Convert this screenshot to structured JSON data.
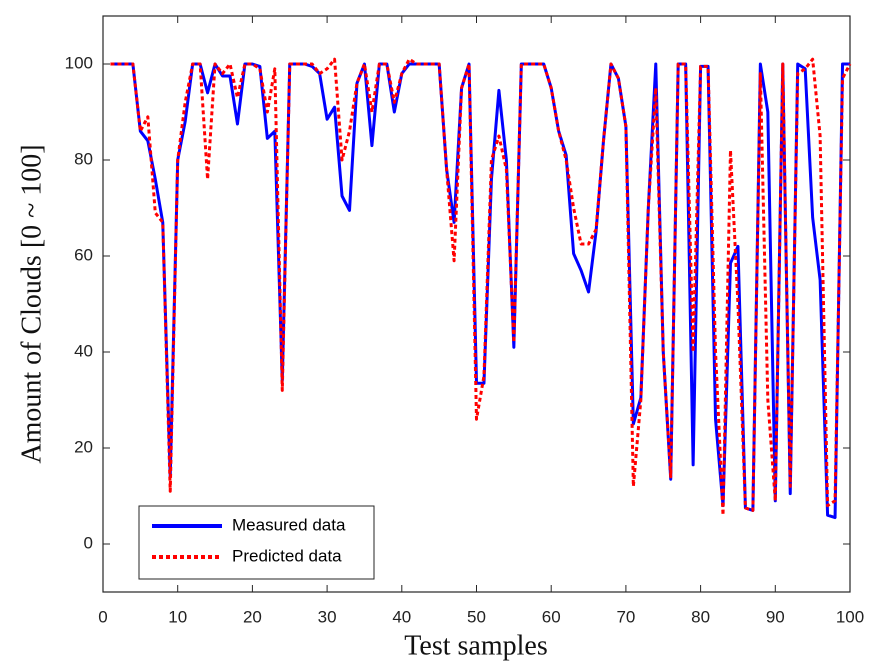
{
  "chart_data": {
    "type": "line",
    "xlabel": "Test samples",
    "ylabel": "Amount of Clouds [0 ~ 100]",
    "x": [
      1,
      2,
      3,
      4,
      5,
      6,
      7,
      8,
      9,
      10,
      11,
      12,
      13,
      14,
      15,
      16,
      17,
      18,
      19,
      20,
      21,
      22,
      23,
      24,
      25,
      26,
      27,
      28,
      29,
      30,
      31,
      32,
      33,
      34,
      35,
      36,
      37,
      38,
      39,
      40,
      41,
      42,
      43,
      44,
      45,
      46,
      47,
      48,
      49,
      50,
      51,
      52,
      53,
      54,
      55,
      56,
      57,
      58,
      59,
      60,
      61,
      62,
      63,
      64,
      65,
      66,
      67,
      68,
      69,
      70,
      71,
      72,
      73,
      74,
      75,
      76,
      77,
      78,
      79,
      80,
      81,
      82,
      83,
      84,
      85,
      86,
      87,
      88,
      89,
      90,
      91,
      92,
      93,
      94,
      95,
      96,
      97,
      98,
      99,
      100
    ],
    "series": [
      {
        "name": "Measured data",
        "color": "#0000ff",
        "dash": "none",
        "values": [
          100,
          100,
          100,
          100,
          86,
          84,
          76,
          67,
          14,
          80,
          88,
          100,
          100,
          94,
          100,
          97.5,
          97.5,
          87.5,
          100,
          100,
          99.5,
          84.5,
          86,
          34,
          100,
          100,
          100,
          99.5,
          98,
          88.5,
          91,
          72.5,
          69.5,
          96,
          100,
          83,
          100,
          100,
          90,
          98,
          100,
          100,
          100,
          100,
          100,
          78,
          67,
          95,
          100,
          33.5,
          33.5,
          76,
          94.5,
          80,
          41,
          100,
          100,
          100,
          100,
          95,
          86,
          81,
          60.5,
          57,
          52.5,
          65,
          84,
          100,
          97,
          87,
          25,
          30.5,
          70,
          100,
          40,
          13.5,
          100,
          100,
          16.5,
          99.5,
          99.5,
          26,
          8,
          58.5,
          62,
          7.5,
          7,
          100,
          90,
          9,
          100,
          10.5,
          100,
          99,
          68,
          55,
          6,
          5.5,
          100,
          100
        ]
      },
      {
        "name": "Predicted data",
        "color": "#ff0000",
        "dash": "4 3",
        "values": [
          100,
          100,
          100,
          100,
          86,
          89,
          69,
          67,
          11,
          80,
          92,
          100,
          100,
          76,
          100,
          98,
          100,
          93,
          100,
          100,
          99,
          90,
          99,
          32,
          100,
          100,
          100,
          100,
          98,
          99,
          101,
          80,
          86,
          96,
          100,
          90,
          100,
          100,
          92,
          98,
          101,
          100,
          100,
          100,
          100,
          78,
          59,
          95,
          100,
          26,
          35,
          80,
          85,
          78,
          42,
          100,
          100,
          100,
          100,
          95,
          86,
          80,
          70,
          62.5,
          62.5,
          65.5,
          84,
          100,
          97,
          87,
          12,
          30,
          70,
          95,
          40,
          14,
          100,
          100,
          40,
          99.5,
          99.5,
          40,
          6,
          82,
          50,
          7.5,
          7,
          98,
          30,
          9,
          100,
          12,
          98,
          99,
          101,
          85,
          8,
          9,
          97,
          100
        ]
      }
    ],
    "xlim": [
      0,
      100
    ],
    "xticks": [
      0,
      10,
      20,
      30,
      40,
      50,
      60,
      70,
      80,
      90,
      100
    ],
    "ylim": [
      -10,
      110
    ],
    "yticks": [
      0,
      20,
      40,
      60,
      80,
      100
    ],
    "legend": "lower left"
  }
}
